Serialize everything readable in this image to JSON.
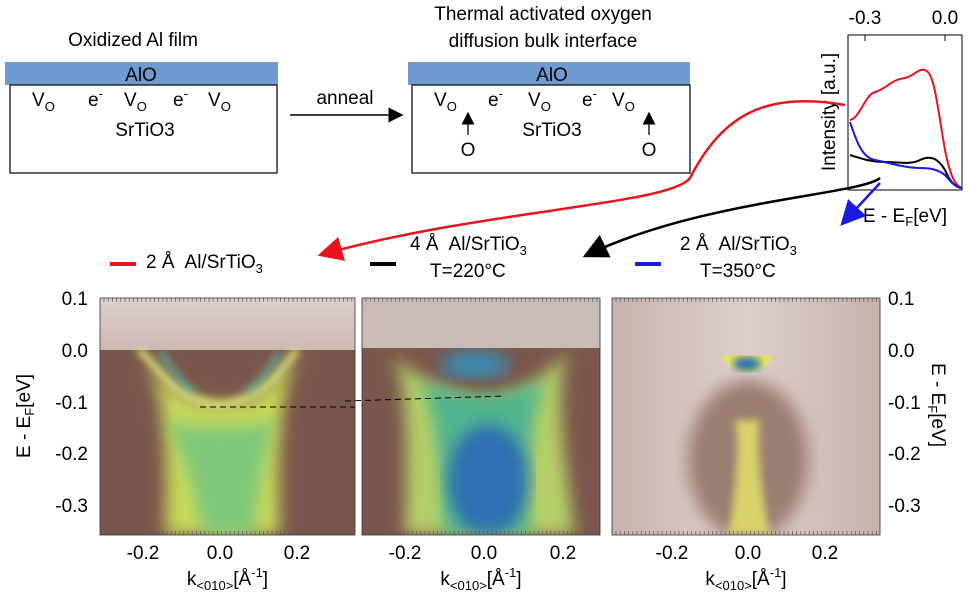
{
  "diagram": {
    "before": {
      "title": "Oxidized Al film",
      "layer": "AlO",
      "substrate": "SrTiO3"
    },
    "carriers": {
      "vacancy": {
        "main": "V",
        "sub": "O"
      },
      "electron": {
        "main": "e",
        "sup": "-"
      }
    },
    "arrow_label": "anneal",
    "after": {
      "title": [
        "Thermal activated oxygen",
        "diffusion bulk interface"
      ],
      "layer": "AlO",
      "substrate": "SrTiO3",
      "oxygen": "O"
    }
  },
  "inset": {
    "x_ticks": [
      "-0.3",
      "0.0"
    ],
    "x_label": {
      "main": "E - E",
      "sub": "F",
      "suffix": "[eV]"
    },
    "y_label": "Intensity [a.u.]"
  },
  "legend": [
    {
      "thickness": "2 Å",
      "label": "Al/SrTiO",
      "sub": "3",
      "color": "#e8141c"
    },
    {
      "thickness": "4 Å",
      "label": "Al/SrTiO",
      "sub": "3",
      "temp": "T=220°C",
      "color": "#000000"
    },
    {
      "thickness": "2 Å",
      "label": "Al/SrTiO",
      "sub": "3",
      "temp": "T=350°C",
      "color": "#1a1ae0"
    }
  ],
  "panels": {
    "y_ticks": [
      "0.1",
      "0.0",
      "-0.1",
      "-0.2",
      "-0.3"
    ],
    "x_ticks": [
      "-0.2",
      "0.0",
      "0.2"
    ],
    "y_label": {
      "main": "E - E",
      "sub": "F",
      "suffix": "[eV]"
    },
    "x_label": {
      "main": "k",
      "sub": "<010>",
      "mid": "[Å",
      "sup": "-1",
      "suffix": "]"
    }
  }
}
